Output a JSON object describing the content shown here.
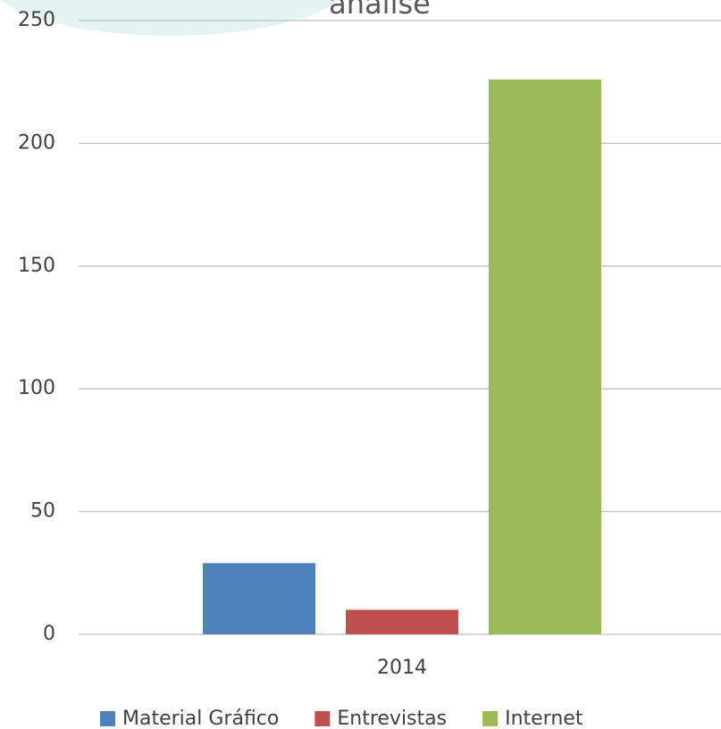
{
  "chart_data": {
    "type": "bar",
    "title": "análise",
    "categories": [
      "2014"
    ],
    "series": [
      {
        "name": "Material Gráfico",
        "color": "#4f81bd",
        "values": [
          29
        ]
      },
      {
        "name": "Entrevistas",
        "color": "#c0504d",
        "values": [
          10
        ]
      },
      {
        "name": "Internet",
        "color": "#9bbb59",
        "values": [
          226
        ]
      }
    ],
    "ylim": [
      0,
      250
    ],
    "yticks": [
      0,
      50,
      100,
      150,
      200,
      250
    ],
    "grid": true,
    "legend": "bottom"
  }
}
